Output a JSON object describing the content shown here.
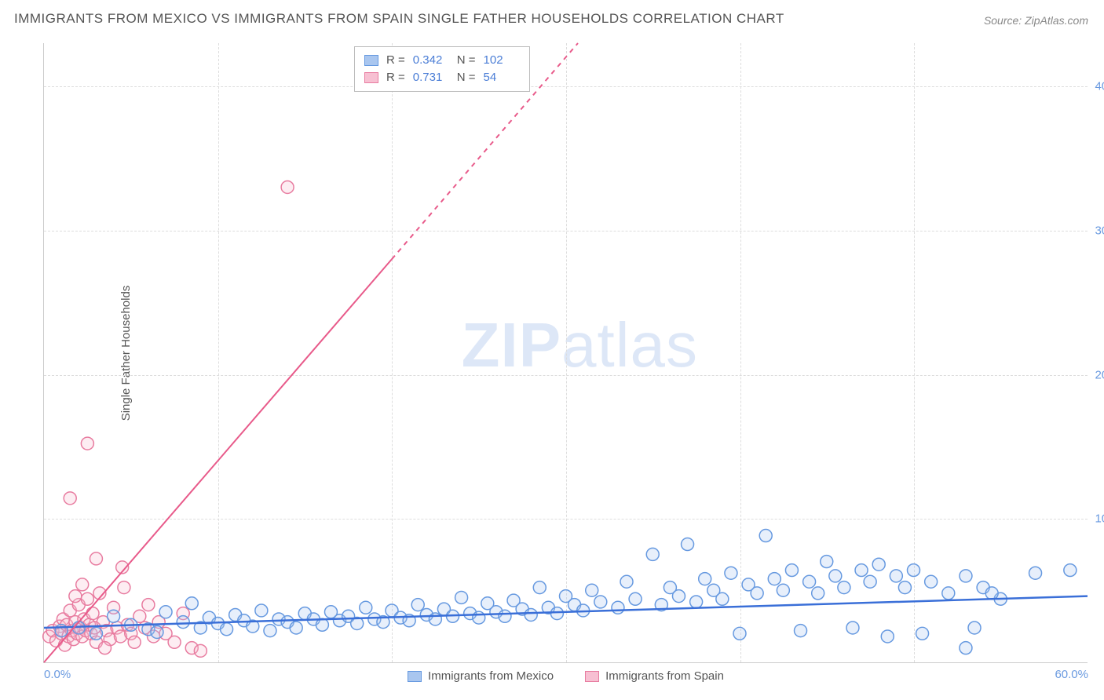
{
  "title": "IMMIGRANTS FROM MEXICO VS IMMIGRANTS FROM SPAIN SINGLE FATHER HOUSEHOLDS CORRELATION CHART",
  "source": "Source: ZipAtlas.com",
  "ylabel": "Single Father Households",
  "watermark": {
    "part1": "ZIP",
    "part2": "atlas"
  },
  "chart": {
    "type": "scatter",
    "xlim": [
      0,
      60
    ],
    "ylim": [
      0,
      43
    ],
    "xticks": [
      0,
      60
    ],
    "xticks_labels": [
      "0.0%",
      "60.0%"
    ],
    "yticks": [
      10,
      20,
      30,
      40
    ],
    "yticks_labels": [
      "10.0%",
      "20.0%",
      "30.0%",
      "40.0%"
    ],
    "vgrid_positions": [
      0.167,
      0.333,
      0.5,
      0.667,
      0.833
    ],
    "background_color": "#ffffff",
    "grid_color": "#dddddd",
    "axis_color": "#cccccc",
    "marker_radius": 8,
    "marker_stroke_width": 1.5,
    "marker_fill_opacity": 0.28,
    "series": {
      "mexico": {
        "label": "Immigrants from Mexico",
        "stroke": "#6699e0",
        "fill": "#a9c6ef",
        "line_color": "#3a6fd8",
        "line_width": 2.5,
        "line": {
          "x1": 0,
          "y1": 2.4,
          "x2": 60,
          "y2": 4.6
        },
        "R": "0.342",
        "N": "102",
        "points": [
          [
            1,
            2.2
          ],
          [
            2,
            2.4
          ],
          [
            3,
            2.0
          ],
          [
            4,
            3.2
          ],
          [
            5,
            2.6
          ],
          [
            6,
            2.3
          ],
          [
            7,
            3.5
          ],
          [
            6.5,
            2.1
          ],
          [
            8,
            2.8
          ],
          [
            8.5,
            4.1
          ],
          [
            9,
            2.4
          ],
          [
            9.5,
            3.1
          ],
          [
            10,
            2.7
          ],
          [
            10.5,
            2.3
          ],
          [
            11,
            3.3
          ],
          [
            11.5,
            2.9
          ],
          [
            12,
            2.5
          ],
          [
            12.5,
            3.6
          ],
          [
            13,
            2.2
          ],
          [
            13.5,
            3.0
          ],
          [
            14,
            2.8
          ],
          [
            14.5,
            2.4
          ],
          [
            15,
            3.4
          ],
          [
            15.5,
            3.0
          ],
          [
            16,
            2.6
          ],
          [
            16.5,
            3.5
          ],
          [
            17,
            2.9
          ],
          [
            17.5,
            3.2
          ],
          [
            18,
            2.7
          ],
          [
            18.5,
            3.8
          ],
          [
            19,
            3.0
          ],
          [
            19.5,
            2.8
          ],
          [
            20,
            3.6
          ],
          [
            20.5,
            3.1
          ],
          [
            21,
            2.9
          ],
          [
            21.5,
            4.0
          ],
          [
            22,
            3.3
          ],
          [
            22.5,
            3.0
          ],
          [
            23,
            3.7
          ],
          [
            23.5,
            3.2
          ],
          [
            24,
            4.5
          ],
          [
            24.5,
            3.4
          ],
          [
            25,
            3.1
          ],
          [
            25.5,
            4.1
          ],
          [
            26,
            3.5
          ],
          [
            26.5,
            3.2
          ],
          [
            27,
            4.3
          ],
          [
            27.5,
            3.7
          ],
          [
            28,
            3.3
          ],
          [
            28.5,
            5.2
          ],
          [
            29,
            3.8
          ],
          [
            29.5,
            3.4
          ],
          [
            30,
            4.6
          ],
          [
            30.5,
            4.0
          ],
          [
            31,
            3.6
          ],
          [
            31.5,
            5.0
          ],
          [
            32,
            4.2
          ],
          [
            33,
            3.8
          ],
          [
            33.5,
            5.6
          ],
          [
            34,
            4.4
          ],
          [
            35,
            7.5
          ],
          [
            35.5,
            4.0
          ],
          [
            36,
            5.2
          ],
          [
            36.5,
            4.6
          ],
          [
            37,
            8.2
          ],
          [
            37.5,
            4.2
          ],
          [
            38,
            5.8
          ],
          [
            38.5,
            5.0
          ],
          [
            39,
            4.4
          ],
          [
            39.5,
            6.2
          ],
          [
            40,
            2.0
          ],
          [
            40.5,
            5.4
          ],
          [
            41,
            4.8
          ],
          [
            41.5,
            8.8
          ],
          [
            42,
            5.8
          ],
          [
            42.5,
            5.0
          ],
          [
            43,
            6.4
          ],
          [
            43.5,
            2.2
          ],
          [
            44,
            5.6
          ],
          [
            44.5,
            4.8
          ],
          [
            45,
            7.0
          ],
          [
            45.5,
            6.0
          ],
          [
            46,
            5.2
          ],
          [
            46.5,
            2.4
          ],
          [
            47,
            6.4
          ],
          [
            47.5,
            5.6
          ],
          [
            48,
            6.8
          ],
          [
            48.5,
            1.8
          ],
          [
            49,
            6.0
          ],
          [
            49.5,
            5.2
          ],
          [
            50,
            6.4
          ],
          [
            50.5,
            2.0
          ],
          [
            51,
            5.6
          ],
          [
            52,
            4.8
          ],
          [
            53,
            6.0
          ],
          [
            53.5,
            2.4
          ],
          [
            54,
            5.2
          ],
          [
            55,
            4.4
          ],
          [
            53,
            1.0
          ],
          [
            57,
            6.2
          ],
          [
            54.5,
            4.8
          ],
          [
            59,
            6.4
          ]
        ]
      },
      "spain": {
        "label": "Immigrants from Spain",
        "stroke": "#e87ca0",
        "fill": "#f7c0d2",
        "line_color": "#e85a8a",
        "line_width": 2,
        "line_solid": {
          "x1": 0,
          "y1": 0,
          "x2": 20,
          "y2": 28
        },
        "line_dash": {
          "x1": 20,
          "y1": 28,
          "x2": 30.7,
          "y2": 43
        },
        "R": "0.731",
        "N": "54",
        "points": [
          [
            0.3,
            1.8
          ],
          [
            0.5,
            2.2
          ],
          [
            0.7,
            1.5
          ],
          [
            0.9,
            2.5
          ],
          [
            1.0,
            2.0
          ],
          [
            1.1,
            3.0
          ],
          [
            1.2,
            1.2
          ],
          [
            1.3,
            2.6
          ],
          [
            1.4,
            1.8
          ],
          [
            1.5,
            3.6
          ],
          [
            1.6,
            2.2
          ],
          [
            1.7,
            1.6
          ],
          [
            1.8,
            2.8
          ],
          [
            1.9,
            2.0
          ],
          [
            2.0,
            4.0
          ],
          [
            2.1,
            2.4
          ],
          [
            2.2,
            1.8
          ],
          [
            2.3,
            3.0
          ],
          [
            2.4,
            2.2
          ],
          [
            2.5,
            4.4
          ],
          [
            2.6,
            2.6
          ],
          [
            2.7,
            2.0
          ],
          [
            2.8,
            3.4
          ],
          [
            2.9,
            2.4
          ],
          [
            3.0,
            1.4
          ],
          [
            3.2,
            4.8
          ],
          [
            3.4,
            2.8
          ],
          [
            3.6,
            2.2
          ],
          [
            3.8,
            1.6
          ],
          [
            4.0,
            3.8
          ],
          [
            4.2,
            2.4
          ],
          [
            4.4,
            1.8
          ],
          [
            4.6,
            5.2
          ],
          [
            4.8,
            2.6
          ],
          [
            5.0,
            2.0
          ],
          [
            5.2,
            1.4
          ],
          [
            5.5,
            3.2
          ],
          [
            5.8,
            2.4
          ],
          [
            6.0,
            4.0
          ],
          [
            6.3,
            1.8
          ],
          [
            6.6,
            2.8
          ],
          [
            7.0,
            2.0
          ],
          [
            7.5,
            1.4
          ],
          [
            8.0,
            3.4
          ],
          [
            1.5,
            11.4
          ],
          [
            2.5,
            15.2
          ],
          [
            8.5,
            1.0
          ],
          [
            14,
            33.0
          ],
          [
            4.5,
            6.6
          ],
          [
            9.0,
            0.8
          ],
          [
            3.0,
            7.2
          ],
          [
            2.2,
            5.4
          ],
          [
            1.8,
            4.6
          ],
          [
            3.5,
            1.0
          ]
        ]
      }
    }
  },
  "legend_top_label_R": "R =",
  "legend_top_label_N": "N ="
}
